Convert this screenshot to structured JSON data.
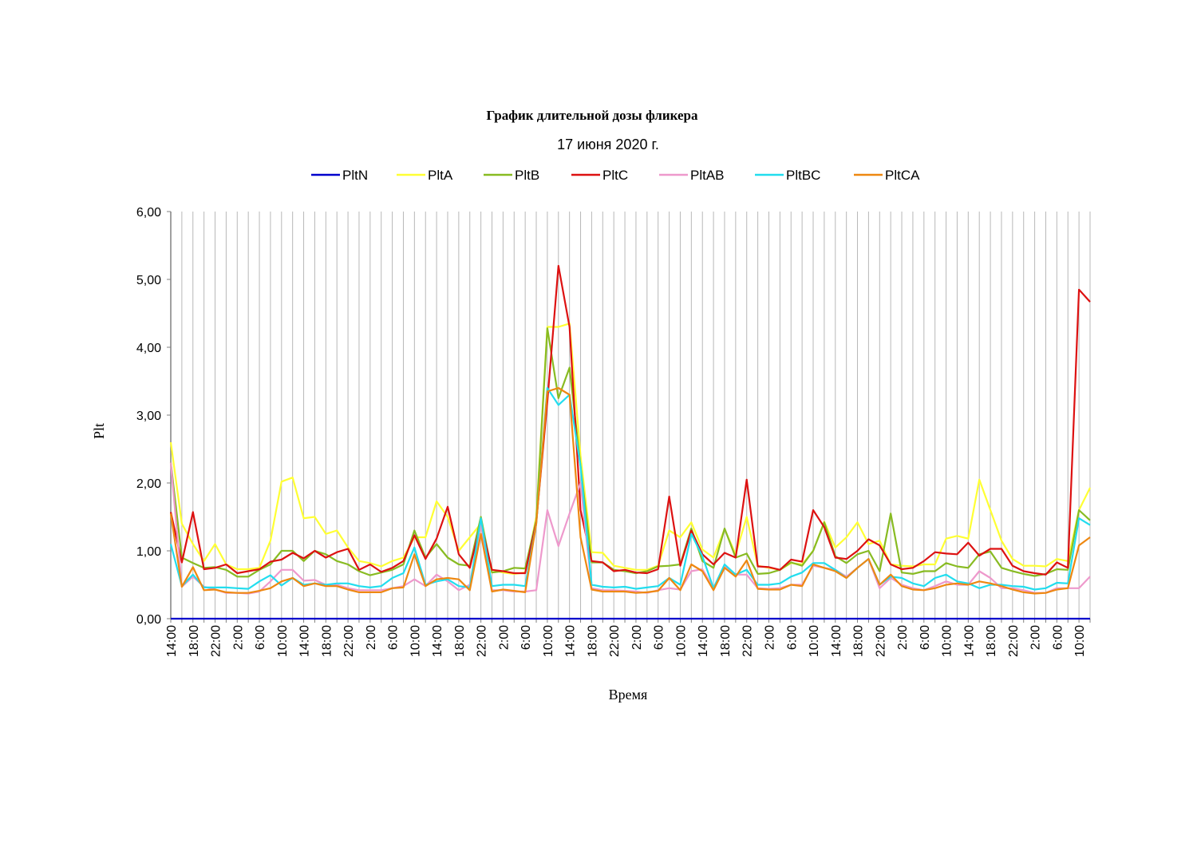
{
  "chart_data": {
    "type": "line",
    "title": "График длительной дозы фликера",
    "subtitle": "17 июня 2020 г.",
    "xlabel": "Время",
    "ylabel": "Plt",
    "ylim": [
      0,
      6
    ],
    "yticks": [
      "0,00",
      "1,00",
      "2,00",
      "3,00",
      "4,00",
      "5,00",
      "6,00"
    ],
    "grid": "vertical",
    "legend_position": "top",
    "x_tick_labels": [
      "14:00",
      "18:00",
      "22:00",
      "2:00",
      "6:00",
      "10:00",
      "14:00",
      "18:00",
      "22:00",
      "2:00",
      "6:00",
      "10:00",
      "14:00",
      "18:00",
      "22:00",
      "2:00",
      "6:00",
      "10:00",
      "14:00",
      "18:00",
      "22:00",
      "2:00",
      "6:00",
      "10:00",
      "14:00",
      "18:00",
      "22:00",
      "2:00",
      "6:00",
      "10:00",
      "14:00",
      "18:00",
      "22:00",
      "2:00",
      "6:00",
      "10:00",
      "14:00",
      "18:00",
      "22:00",
      "2:00",
      "6:00",
      "10:00"
    ],
    "series": [
      {
        "name": "PltN",
        "color": "#0000CC",
        "values": [
          0,
          0,
          0,
          0,
          0,
          0,
          0,
          0,
          0,
          0,
          0,
          0,
          0,
          0,
          0,
          0,
          0,
          0,
          0,
          0,
          0,
          0,
          0,
          0,
          0,
          0,
          0,
          0,
          0,
          0,
          0,
          0,
          0,
          0,
          0,
          0,
          0,
          0,
          0,
          0,
          0,
          0,
          0,
          0,
          0,
          0,
          0,
          0,
          0,
          0,
          0,
          0,
          0,
          0,
          0,
          0,
          0,
          0,
          0,
          0,
          0,
          0,
          0,
          0,
          0,
          0,
          0,
          0,
          0,
          0,
          0,
          0,
          0,
          0,
          0,
          0,
          0,
          0,
          0,
          0,
          0,
          0,
          0,
          0
        ]
      },
      {
        "name": "PltA",
        "color": "#FFFF33",
        "values": [
          2.6,
          1.4,
          1.1,
          0.85,
          1.1,
          0.8,
          0.73,
          0.73,
          0.75,
          1.15,
          2.02,
          2.08,
          1.48,
          1.5,
          1.25,
          1.3,
          1.05,
          0.85,
          0.82,
          0.77,
          0.85,
          0.9,
          1.2,
          1.2,
          1.73,
          1.5,
          1.0,
          1.2,
          1.4,
          0.72,
          0.68,
          0.66,
          0.68,
          1.5,
          4.3,
          4.3,
          4.35,
          2.4,
          0.98,
          0.97,
          0.78,
          0.75,
          0.72,
          0.72,
          0.78,
          1.3,
          1.2,
          1.42,
          1.02,
          0.9,
          1.32,
          0.95,
          1.5,
          0.78,
          0.75,
          0.72,
          0.82,
          0.8,
          1.0,
          1.43,
          1.05,
          1.2,
          1.42,
          1.1,
          1.15,
          0.8,
          0.78,
          0.77,
          0.8,
          0.8,
          1.18,
          1.22,
          1.18,
          2.05,
          1.6,
          1.15,
          0.88,
          0.78,
          0.78,
          0.77,
          0.88,
          0.85,
          1.6,
          1.93
        ]
      },
      {
        "name": "PltB",
        "color": "#88BB22",
        "values": [
          2.3,
          0.9,
          0.82,
          0.75,
          0.76,
          0.72,
          0.62,
          0.62,
          0.72,
          0.8,
          1.0,
          1.0,
          0.85,
          1.0,
          0.95,
          0.85,
          0.8,
          0.7,
          0.64,
          0.68,
          0.72,
          0.8,
          1.3,
          0.9,
          1.1,
          0.9,
          0.8,
          0.78,
          1.5,
          0.68,
          0.7,
          0.75,
          0.74,
          1.45,
          4.28,
          3.25,
          3.7,
          2.25,
          0.83,
          0.83,
          0.72,
          0.7,
          0.67,
          0.7,
          0.77,
          0.78,
          0.8,
          1.33,
          0.85,
          0.75,
          1.33,
          0.9,
          0.96,
          0.66,
          0.67,
          0.72,
          0.83,
          0.78,
          1.0,
          1.42,
          0.92,
          0.82,
          0.95,
          1.0,
          0.7,
          1.55,
          0.68,
          0.66,
          0.7,
          0.7,
          0.82,
          0.77,
          0.75,
          0.95,
          0.99,
          0.75,
          0.7,
          0.66,
          0.63,
          0.66,
          0.73,
          0.72,
          1.6,
          1.45
        ]
      },
      {
        "name": "PltC",
        "color": "#DD1111",
        "values": [
          1.57,
          0.83,
          1.57,
          0.73,
          0.75,
          0.8,
          0.67,
          0.7,
          0.73,
          0.84,
          0.87,
          0.97,
          0.89,
          1.0,
          0.9,
          0.98,
          1.03,
          0.72,
          0.8,
          0.69,
          0.75,
          0.85,
          1.23,
          0.88,
          1.18,
          1.65,
          0.95,
          0.75,
          1.4,
          0.72,
          0.7,
          0.67,
          0.67,
          1.42,
          3.2,
          5.2,
          4.3,
          1.6,
          0.85,
          0.83,
          0.7,
          0.72,
          0.68,
          0.67,
          0.73,
          1.8,
          0.78,
          1.3,
          0.95,
          0.8,
          0.97,
          0.9,
          2.05,
          0.77,
          0.76,
          0.72,
          0.87,
          0.84,
          1.6,
          1.35,
          0.9,
          0.88,
          1.0,
          1.17,
          1.08,
          0.8,
          0.73,
          0.75,
          0.85,
          0.98,
          0.96,
          0.95,
          1.12,
          0.93,
          1.03,
          1.03,
          0.78,
          0.7,
          0.67,
          0.65,
          0.83,
          0.75,
          4.85,
          4.67
        ]
      },
      {
        "name": "PltAB",
        "color": "#EE99CC",
        "values": [
          2.3,
          0.47,
          0.62,
          0.47,
          0.43,
          0.38,
          0.38,
          0.37,
          0.4,
          0.55,
          0.72,
          0.72,
          0.56,
          0.57,
          0.5,
          0.5,
          0.45,
          0.42,
          0.42,
          0.42,
          0.45,
          0.48,
          0.58,
          0.48,
          0.65,
          0.55,
          0.42,
          0.5,
          1.4,
          0.42,
          0.42,
          0.4,
          0.4,
          0.42,
          1.6,
          1.07,
          1.55,
          2.0,
          0.45,
          0.42,
          0.42,
          0.41,
          0.4,
          0.38,
          0.42,
          0.45,
          0.43,
          0.7,
          0.73,
          0.45,
          0.78,
          0.65,
          0.65,
          0.45,
          0.44,
          0.45,
          0.5,
          0.5,
          0.78,
          0.75,
          0.72,
          0.62,
          0.75,
          0.88,
          0.45,
          0.6,
          0.5,
          0.45,
          0.42,
          0.48,
          0.55,
          0.5,
          0.5,
          0.7,
          0.6,
          0.45,
          0.45,
          0.42,
          0.38,
          0.38,
          0.45,
          0.45,
          0.45,
          0.62
        ]
      },
      {
        "name": "PltBC",
        "color": "#22DDEE",
        "values": [
          1.1,
          0.48,
          0.65,
          0.46,
          0.46,
          0.46,
          0.45,
          0.44,
          0.55,
          0.64,
          0.49,
          0.6,
          0.5,
          0.52,
          0.5,
          0.52,
          0.52,
          0.48,
          0.46,
          0.48,
          0.6,
          0.67,
          1.05,
          0.5,
          0.55,
          0.58,
          0.48,
          0.46,
          1.48,
          0.48,
          0.5,
          0.5,
          0.48,
          1.4,
          3.4,
          3.15,
          3.3,
          2.25,
          0.5,
          0.47,
          0.46,
          0.47,
          0.44,
          0.46,
          0.48,
          0.6,
          0.5,
          1.25,
          0.92,
          0.45,
          0.8,
          0.65,
          0.72,
          0.5,
          0.5,
          0.52,
          0.62,
          0.68,
          0.82,
          0.82,
          0.72,
          0.6,
          0.75,
          0.88,
          0.5,
          0.62,
          0.6,
          0.52,
          0.48,
          0.6,
          0.65,
          0.55,
          0.52,
          0.45,
          0.5,
          0.5,
          0.48,
          0.47,
          0.43,
          0.45,
          0.53,
          0.52,
          1.48,
          1.38
        ]
      },
      {
        "name": "PltCA",
        "color": "#EE8811",
        "values": [
          1.55,
          0.47,
          0.76,
          0.42,
          0.43,
          0.39,
          0.38,
          0.38,
          0.41,
          0.45,
          0.55,
          0.6,
          0.48,
          0.52,
          0.48,
          0.48,
          0.43,
          0.39,
          0.39,
          0.39,
          0.45,
          0.46,
          0.95,
          0.48,
          0.58,
          0.6,
          0.58,
          0.42,
          1.25,
          0.4,
          0.43,
          0.41,
          0.39,
          1.4,
          3.35,
          3.4,
          3.3,
          1.2,
          0.43,
          0.4,
          0.4,
          0.4,
          0.38,
          0.39,
          0.41,
          0.6,
          0.42,
          0.8,
          0.7,
          0.42,
          0.75,
          0.62,
          0.86,
          0.44,
          0.43,
          0.43,
          0.5,
          0.48,
          0.8,
          0.75,
          0.7,
          0.6,
          0.75,
          0.88,
          0.5,
          0.65,
          0.48,
          0.43,
          0.42,
          0.45,
          0.5,
          0.52,
          0.5,
          0.55,
          0.52,
          0.48,
          0.43,
          0.39,
          0.37,
          0.38,
          0.43,
          0.45,
          1.08,
          1.2
        ]
      }
    ]
  }
}
